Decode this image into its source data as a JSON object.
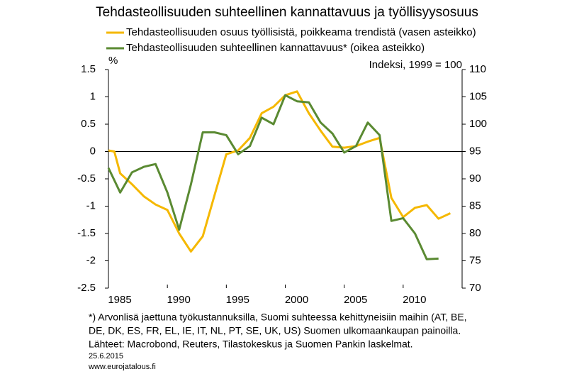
{
  "chart_data": {
    "type": "line",
    "title": "Tehdasteollisuuden suhteellinen kannattavuus ja työllisyysosuus",
    "y_label": "%",
    "y2_label": "Indeksi, 1999 = 100",
    "xlim": [
      1985,
      2015
    ],
    "xticks": [
      1985,
      1990,
      1995,
      2000,
      2005,
      2010
    ],
    "ylim": [
      -2.5,
      1.5
    ],
    "yticks": [
      1.5,
      1,
      0.5,
      0,
      -0.5,
      -1,
      -1.5,
      -2,
      -2.5
    ],
    "y2lim": [
      70,
      110
    ],
    "y2ticks": [
      110,
      105,
      100,
      95,
      90,
      85,
      80,
      75,
      70
    ],
    "grid": false,
    "series": [
      {
        "name": "Tehdasteollisuuden osuus työllisistä, poikkeama trendistä (vasen asteikko)",
        "color": "#f5b800",
        "x": [
          1985,
          1985.5,
          1986,
          1987,
          1988,
          1989,
          1990,
          1991,
          1992,
          1993,
          1994,
          1995,
          1996,
          1997,
          1998,
          1999,
          2000,
          2001,
          2002,
          2003,
          2004,
          2005,
          2006,
          2007,
          2008,
          2009,
          2010,
          2011,
          2012,
          2013,
          2014
        ],
        "values": [
          0.02,
          0,
          -0.4,
          -0.6,
          -0.82,
          -0.97,
          -1.07,
          -1.5,
          -1.83,
          -1.55,
          -0.8,
          -0.05,
          0.02,
          0.25,
          0.7,
          0.82,
          1.03,
          1.1,
          0.7,
          0.38,
          0.09,
          0.07,
          0.1,
          0.18,
          0.25,
          -0.85,
          -1.2,
          -1.03,
          -0.98,
          -1.23,
          -1.13
        ]
      },
      {
        "name": "Tehdasteollisuuden suhteellinen kannattavuus* (oikea asteikko)",
        "color": "#5a8a32",
        "axis": "y2",
        "x": [
          1985,
          1986,
          1987,
          1988,
          1989,
          1990,
          1991,
          1992,
          1993,
          1994,
          1995,
          1996,
          1997,
          1998,
          1999,
          2000,
          2001,
          2002,
          2003,
          2004,
          2005,
          2006,
          2007,
          2008,
          2009,
          2010,
          2011,
          2012,
          2013
        ],
        "values": [
          92,
          87.5,
          91.2,
          92.2,
          92.7,
          87.5,
          80.7,
          89,
          98.5,
          98.5,
          98,
          94.5,
          96,
          101.2,
          100,
          105.3,
          104.2,
          104,
          100.3,
          98.3,
          94.8,
          96,
          100.3,
          98,
          82.3,
          82.8,
          80,
          75.3,
          75.4
        ]
      }
    ],
    "notes": [
      "*) Arvonlisä jaettuna työkustannuksilla, Suomi suhteessa kehittyneisiin maihin (AT, BE,",
      "DE, DK, ES, FR, EL, IE, IT, NL, PT, SE, UK, US) Suomen ulkomaankaupan painoilla.",
      "Lähteet: Macrobond, Reuters, Tilastokeskus ja Suomen Pankin laskelmat."
    ],
    "date": "25.6.2015",
    "source_url": "www.eurojatalous.fi"
  }
}
